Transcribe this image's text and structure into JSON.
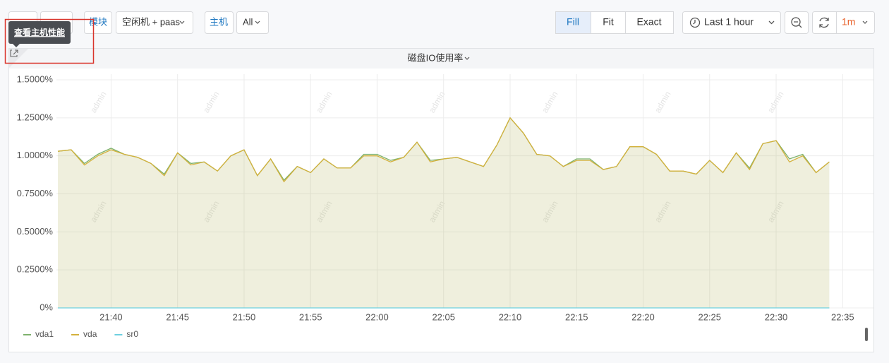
{
  "toolbar": {
    "module": "模块",
    "module_value": "空闲机 + paas",
    "host": "主机",
    "host_value": "All",
    "fill": "Fill",
    "fit": "Fit",
    "exact": "Exact",
    "time_range": "Last 1 hour",
    "refresh": "1m"
  },
  "tooltip": "查看主机性能",
  "watermark": "admin",
  "chart_data": {
    "type": "line",
    "title": "磁盘IO使用率",
    "fill_area": true,
    "grid": true,
    "legend": "bottom-left",
    "x": [
      "21:36",
      "21:37",
      "21:38",
      "21:39",
      "21:40",
      "21:41",
      "21:42",
      "21:43",
      "21:44",
      "21:45",
      "21:46",
      "21:47",
      "21:48",
      "21:49",
      "21:50",
      "21:51",
      "21:52",
      "21:53",
      "21:54",
      "21:55",
      "21:56",
      "21:57",
      "21:58",
      "21:59",
      "22:00",
      "22:01",
      "22:02",
      "22:03",
      "22:04",
      "22:05",
      "22:06",
      "22:07",
      "22:08",
      "22:09",
      "22:10",
      "22:11",
      "22:12",
      "22:13",
      "22:14",
      "22:15",
      "22:16",
      "22:17",
      "22:18",
      "22:19",
      "22:20",
      "22:21",
      "22:22",
      "22:23",
      "22:24",
      "22:25",
      "22:26",
      "22:27",
      "22:28",
      "22:29",
      "22:30",
      "22:31",
      "22:32",
      "22:33",
      "22:34"
    ],
    "xlim": [
      "21:36",
      "22:37"
    ],
    "xticks": [
      "21:40",
      "21:45",
      "21:50",
      "21:55",
      "22:00",
      "22:05",
      "22:10",
      "22:15",
      "22:20",
      "22:25",
      "22:30",
      "22:35"
    ],
    "ylim": [
      0,
      1.5
    ],
    "yticks": [
      {
        "value": 0,
        "label": "0%"
      },
      {
        "value": 0.25,
        "label": "0.2500%"
      },
      {
        "value": 0.5,
        "label": "0.5000%"
      },
      {
        "value": 0.75,
        "label": "0.7500%"
      },
      {
        "value": 1,
        "label": "1.0000%"
      },
      {
        "value": 1.25,
        "label": "1.2500%"
      },
      {
        "value": 1.5,
        "label": "1.5000%"
      }
    ],
    "series": [
      {
        "name": "vda1",
        "color": "#7eb26d",
        "values": [
          1.03,
          1.04,
          0.95,
          1.01,
          1.05,
          1.01,
          0.99,
          0.95,
          0.88,
          1.02,
          0.95,
          0.96,
          0.9,
          1.0,
          1.04,
          0.87,
          0.98,
          0.84,
          0.93,
          0.89,
          0.98,
          0.92,
          0.92,
          1.01,
          1.01,
          0.97,
          0.99,
          1.09,
          0.97,
          0.98,
          0.99,
          0.96,
          0.93,
          1.07,
          1.25,
          1.15,
          1.01,
          1.0,
          0.93,
          0.98,
          0.98,
          0.91,
          0.93,
          1.06,
          1.06,
          1.01,
          0.9,
          0.9,
          0.88,
          0.97,
          0.89,
          1.02,
          0.92,
          1.08,
          1.1,
          0.98,
          1.01,
          0.89,
          0.96
        ]
      },
      {
        "name": "vda",
        "color": "#d4b13c",
        "values": [
          1.03,
          1.04,
          0.94,
          1.0,
          1.04,
          1.01,
          0.99,
          0.95,
          0.87,
          1.02,
          0.94,
          0.96,
          0.9,
          1.0,
          1.04,
          0.87,
          0.98,
          0.83,
          0.93,
          0.89,
          0.98,
          0.92,
          0.92,
          1.0,
          1.0,
          0.96,
          0.99,
          1.09,
          0.96,
          0.98,
          0.99,
          0.96,
          0.93,
          1.07,
          1.25,
          1.15,
          1.01,
          1.0,
          0.93,
          0.97,
          0.97,
          0.91,
          0.93,
          1.06,
          1.06,
          1.01,
          0.9,
          0.9,
          0.88,
          0.97,
          0.89,
          1.02,
          0.91,
          1.08,
          1.1,
          0.96,
          1.0,
          0.89,
          0.96
        ]
      },
      {
        "name": "sr0",
        "color": "#6ed0e0",
        "values": [
          0,
          0,
          0,
          0,
          0,
          0,
          0,
          0,
          0,
          0,
          0,
          0,
          0,
          0,
          0,
          0,
          0,
          0,
          0,
          0,
          0,
          0,
          0,
          0,
          0,
          0,
          0,
          0,
          0,
          0,
          0,
          0,
          0,
          0,
          0,
          0,
          0,
          0,
          0,
          0,
          0,
          0,
          0,
          0,
          0,
          0,
          0,
          0,
          0,
          0,
          0,
          0,
          0,
          0,
          0,
          0,
          0,
          0,
          0
        ]
      }
    ]
  }
}
